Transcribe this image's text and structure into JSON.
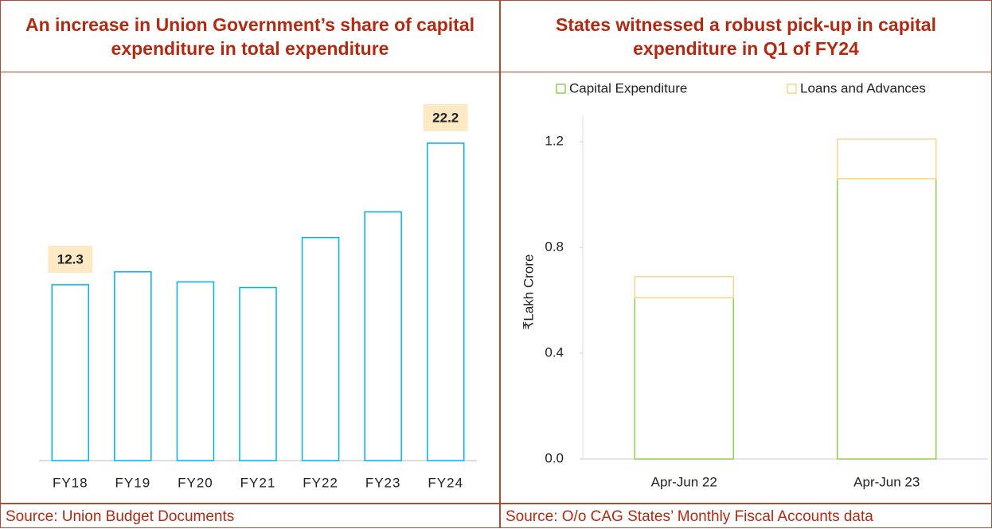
{
  "chart_data": [
    {
      "type": "bar",
      "title": "An increase in Union Government’s share of capital expenditure in total expenditure",
      "categories": [
        "FY18",
        "FY19",
        "FY20",
        "FY21",
        "FY22",
        "FY23",
        "FY24"
      ],
      "values": [
        12.3,
        13.2,
        12.5,
        12.1,
        15.6,
        17.4,
        22.2
      ],
      "value_labels": [
        "12.3",
        null,
        null,
        null,
        null,
        null,
        "22.2"
      ],
      "color": "#00b0f0",
      "source": "Source: Union Budget Documents"
    },
    {
      "type": "stacked_bar",
      "title": "States witnessed a robust pick-up in capital expenditure in Q1 of FY24",
      "categories": [
        "Apr-Jun 22",
        "Apr-Jun 23"
      ],
      "series": [
        {
          "name": "Capital Expenditure",
          "color": "#92d050",
          "values": [
            0.61,
            1.06
          ]
        },
        {
          "name": "Loans and Advances",
          "color": "#ffd58c",
          "values": [
            0.08,
            0.15
          ]
        }
      ],
      "ylabel": "₹Lakh Crore",
      "ylim": [
        0,
        1.3
      ],
      "yticks": [
        {
          "value": 0,
          "label": "0.0"
        },
        0.4,
        0.8,
        1.2
      ],
      "legend": "top",
      "source": "Source: O/o CAG States’ Monthly Fiscal Accounts data"
    }
  ]
}
